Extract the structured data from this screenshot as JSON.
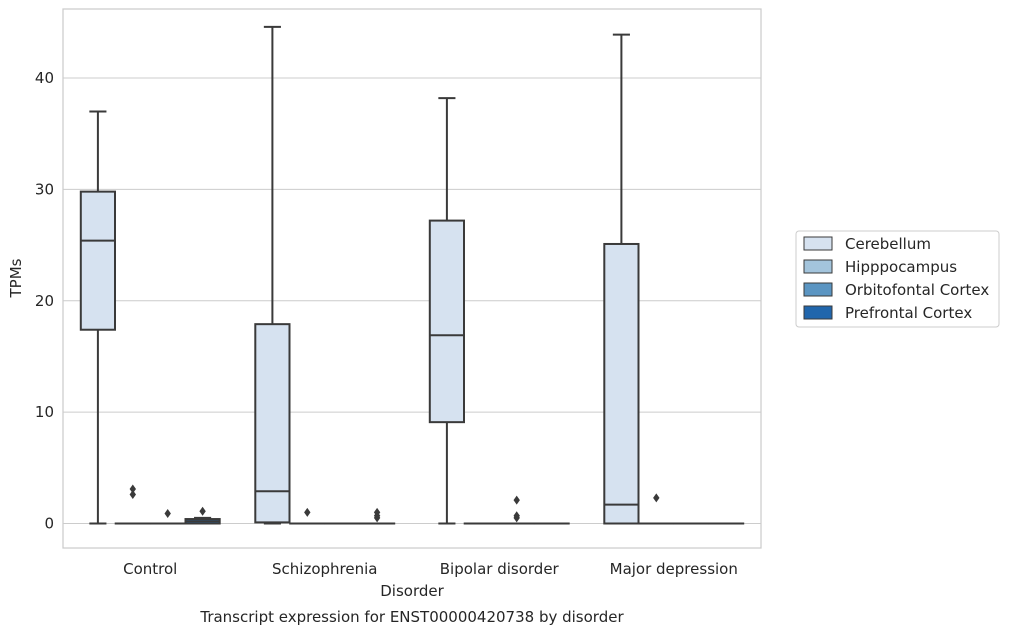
{
  "chart_data": {
    "type": "box",
    "caption": "Transcript expression for ENST00000420738 by disorder",
    "xlabel": "Disorder",
    "ylabel": "TPMs",
    "ylim": [
      -2.2,
      46.2
    ],
    "yticks": [
      0,
      10,
      20,
      30,
      40
    ],
    "grid": "horizontal",
    "legend_position": "right",
    "categories": [
      "Control",
      "Schizophrenia",
      "Bipolar disorder",
      "Major depression"
    ],
    "series": [
      {
        "name": "Cerebellum",
        "color": "#d6e2f0",
        "boxes": [
          {
            "whisker_low": 0,
            "q1": 17.4,
            "median": 25.4,
            "q3": 29.8,
            "whisker_high": 37.0,
            "outliers": []
          },
          {
            "whisker_low": 0,
            "q1": 0.1,
            "median": 2.9,
            "q3": 17.9,
            "whisker_high": 44.6,
            "outliers": []
          },
          {
            "whisker_low": 0,
            "q1": 9.1,
            "median": 16.9,
            "q3": 27.2,
            "whisker_high": 38.2,
            "outliers": []
          },
          {
            "whisker_low": 0,
            "q1": 0,
            "median": 1.7,
            "q3": 25.1,
            "whisker_high": 43.9,
            "outliers": []
          }
        ]
      },
      {
        "name": "Hipppocampus",
        "color": "#a3c4dc",
        "boxes": [
          {
            "whisker_low": 0,
            "q1": 0,
            "median": 0,
            "q3": 0,
            "whisker_high": 0,
            "outliers": [
              2.6,
              3.1
            ]
          },
          {
            "whisker_low": 0,
            "q1": 0,
            "median": 0,
            "q3": 0,
            "whisker_high": 0,
            "outliers": [
              1.0
            ]
          },
          {
            "whisker_low": 0,
            "q1": 0,
            "median": 0,
            "q3": 0,
            "whisker_high": 0,
            "outliers": []
          },
          {
            "whisker_low": 0,
            "q1": 0,
            "median": 0,
            "q3": 0,
            "whisker_high": 0,
            "outliers": [
              2.3
            ]
          }
        ]
      },
      {
        "name": "Orbitofontal Cortex",
        "color": "#5b95c2",
        "boxes": [
          {
            "whisker_low": 0,
            "q1": 0,
            "median": 0,
            "q3": 0,
            "whisker_high": 0,
            "outliers": [
              0.9
            ]
          },
          {
            "whisker_low": 0,
            "q1": 0,
            "median": 0,
            "q3": 0,
            "whisker_high": 0,
            "outliers": []
          },
          {
            "whisker_low": 0,
            "q1": 0,
            "median": 0,
            "q3": 0,
            "whisker_high": 0,
            "outliers": [
              0.5,
              0.7,
              2.1
            ]
          },
          {
            "whisker_low": 0,
            "q1": 0,
            "median": 0,
            "q3": 0,
            "whisker_high": 0,
            "outliers": []
          }
        ]
      },
      {
        "name": "Prefrontal Cortex",
        "color": "#2166ac",
        "boxes": [
          {
            "whisker_low": 0,
            "q1": 0,
            "median": 0.2,
            "q3": 0.4,
            "whisker_high": 0.5,
            "outliers": [
              1.1
            ]
          },
          {
            "whisker_low": 0,
            "q1": 0,
            "median": 0,
            "q3": 0,
            "whisker_high": 0,
            "outliers": [
              0.5,
              0.7,
              1.0
            ]
          },
          {
            "whisker_low": 0,
            "q1": 0,
            "median": 0,
            "q3": 0,
            "whisker_high": 0,
            "outliers": []
          },
          {
            "whisker_low": 0,
            "q1": 0,
            "median": 0,
            "q3": 0,
            "whisker_high": 0,
            "outliers": []
          }
        ]
      }
    ]
  }
}
